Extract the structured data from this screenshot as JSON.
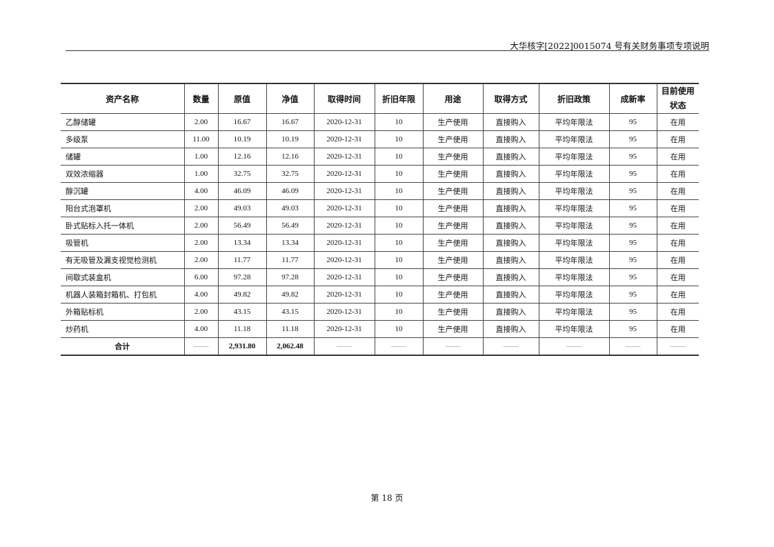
{
  "header": {
    "title": "大华核字[2022]0015074 号有关财务事项专项说明"
  },
  "table": {
    "columns": [
      "资产名称",
      "数量",
      "原值",
      "净值",
      "取得时间",
      "折旧年限",
      "用途",
      "取得方式",
      "折旧政策",
      "成新率",
      "目前使用状态"
    ],
    "rows": [
      [
        "乙醇储罐",
        "2.00",
        "16.67",
        "16.67",
        "2020-12-31",
        "10",
        "生产使用",
        "直接购入",
        "平均年限法",
        "95",
        "在用"
      ],
      [
        "多级泵",
        "11.00",
        "10.19",
        "10.19",
        "2020-12-31",
        "10",
        "生产使用",
        "直接购入",
        "平均年限法",
        "95",
        "在用"
      ],
      [
        "储罐",
        "1.00",
        "12.16",
        "12.16",
        "2020-12-31",
        "10",
        "生产使用",
        "直接购入",
        "平均年限法",
        "95",
        "在用"
      ],
      [
        "双效浓缩器",
        "1.00",
        "32.75",
        "32.75",
        "2020-12-31",
        "10",
        "生产使用",
        "直接购入",
        "平均年限法",
        "95",
        "在用"
      ],
      [
        "醇沉罐",
        "4.00",
        "46.09",
        "46.09",
        "2020-12-31",
        "10",
        "生产使用",
        "直接购入",
        "平均年限法",
        "95",
        "在用"
      ],
      [
        "阳台式泡罩机",
        "2.00",
        "49.03",
        "49.03",
        "2020-12-31",
        "10",
        "生产使用",
        "直接购入",
        "平均年限法",
        "95",
        "在用"
      ],
      [
        "卧式贴标入托一体机",
        "2.00",
        "56.49",
        "56.49",
        "2020-12-31",
        "10",
        "生产使用",
        "直接购入",
        "平均年限法",
        "95",
        "在用"
      ],
      [
        "吸管机",
        "2.00",
        "13.34",
        "13.34",
        "2020-12-31",
        "10",
        "生产使用",
        "直接购入",
        "平均年限法",
        "95",
        "在用"
      ],
      [
        "有无吸管及漏支视觉检测机",
        "2.00",
        "11.77",
        "11.77",
        "2020-12-31",
        "10",
        "生产使用",
        "直接购入",
        "平均年限法",
        "95",
        "在用"
      ],
      [
        "间歇式装盒机",
        "6.00",
        "97.28",
        "97.28",
        "2020-12-31",
        "10",
        "生产使用",
        "直接购入",
        "平均年限法",
        "95",
        "在用"
      ],
      [
        "机器人装箱封箱机、打包机",
        "4.00",
        "49.82",
        "49.82",
        "2020-12-31",
        "10",
        "生产使用",
        "直接购入",
        "平均年限法",
        "95",
        "在用"
      ],
      [
        "外箱贴标机",
        "2.00",
        "43.15",
        "43.15",
        "2020-12-31",
        "10",
        "生产使用",
        "直接购入",
        "平均年限法",
        "95",
        "在用"
      ],
      [
        "炒药机",
        "4.00",
        "11.18",
        "11.18",
        "2020-12-31",
        "10",
        "生产使用",
        "直接购入",
        "平均年限法",
        "95",
        "在用"
      ]
    ],
    "total": [
      "合计",
      "——",
      "2,931.80",
      "2,062.48",
      "——",
      "——",
      "——",
      "——",
      "——",
      "——",
      "——"
    ]
  },
  "footer": {
    "page": "第 18 页"
  }
}
